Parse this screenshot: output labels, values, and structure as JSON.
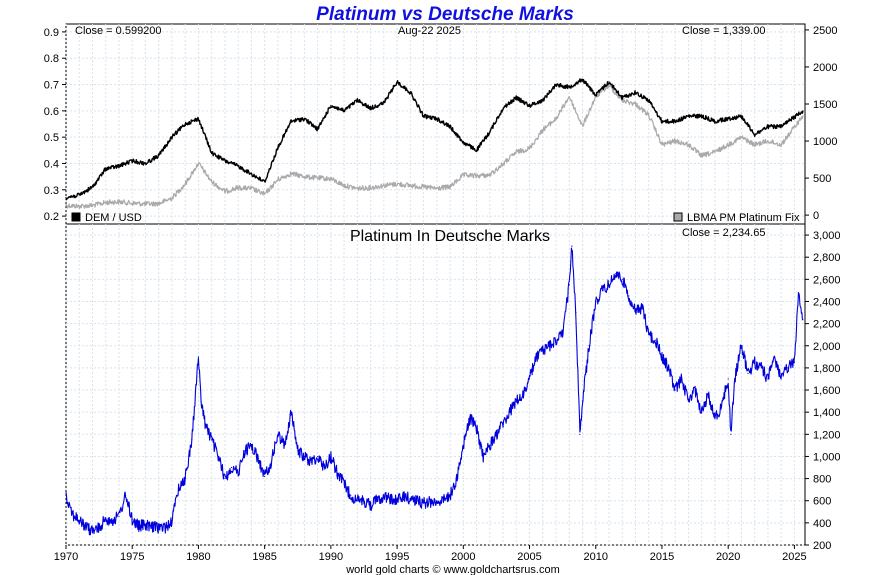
{
  "title": "Platinum vs Deutsche Marks",
  "footer": "world gold charts © www.goldchartsrus.com",
  "chart_data": [
    {
      "type": "line",
      "date_label": "Aug-22  2025",
      "left_close": "Close = 0.599200",
      "right_close": "Close = 1,339.00",
      "left_axis": {
        "ylim": [
          0.17,
          0.93
        ],
        "ticks": [
          "0.2",
          "0.3",
          "0.4",
          "0.5",
          "0.6",
          "0.7",
          "0.8",
          "0.9"
        ],
        "tick_values": [
          0.2,
          0.3,
          0.4,
          0.5,
          0.6,
          0.7,
          0.8,
          0.9
        ]
      },
      "right_axis": {
        "ylim": [
          -120,
          2580
        ],
        "ticks": [
          "0",
          "500",
          "1000",
          "1500",
          "2000",
          "2500"
        ],
        "tick_values": [
          0,
          500,
          1000,
          1500,
          2000,
          2500
        ]
      },
      "x": [
        1970,
        1971,
        1972,
        1973,
        1974,
        1975,
        1976,
        1977,
        1978,
        1979,
        1980,
        1981,
        1982,
        1983,
        1984,
        1985,
        1986,
        1987,
        1988,
        1989,
        1990,
        1991,
        1992,
        1993,
        1994,
        1995,
        1996,
        1997,
        1998,
        1999,
        2000,
        2001,
        2002,
        2003,
        2004,
        2005,
        2006,
        2007,
        2008,
        2009,
        2010,
        2011,
        2012,
        2013,
        2014,
        2015,
        2016,
        2017,
        2018,
        2019,
        2020,
        2021,
        2022,
        2023,
        2024,
        2025.64
      ],
      "series": [
        {
          "name": "DEM / USD",
          "color": "#000000",
          "axis": "left",
          "values": [
            0.27,
            0.28,
            0.31,
            0.38,
            0.39,
            0.41,
            0.4,
            0.43,
            0.5,
            0.55,
            0.57,
            0.44,
            0.41,
            0.39,
            0.36,
            0.33,
            0.46,
            0.56,
            0.57,
            0.53,
            0.62,
            0.6,
            0.64,
            0.61,
            0.63,
            0.71,
            0.67,
            0.58,
            0.57,
            0.54,
            0.48,
            0.45,
            0.52,
            0.61,
            0.65,
            0.62,
            0.64,
            0.7,
            0.69,
            0.72,
            0.66,
            0.71,
            0.65,
            0.67,
            0.64,
            0.56,
            0.56,
            0.58,
            0.58,
            0.56,
            0.57,
            0.58,
            0.51,
            0.54,
            0.54,
            0.6
          ]
        },
        {
          "name": "LBMA PM Platinum Fix",
          "color": "#aaaaaa",
          "axis": "right",
          "values": [
            130,
            120,
            130,
            170,
            180,
            160,
            150,
            155,
            230,
            420,
            700,
            450,
            320,
            370,
            360,
            280,
            480,
            560,
            520,
            500,
            490,
            400,
            360,
            370,
            400,
            420,
            400,
            380,
            360,
            380,
            540,
            530,
            540,
            690,
            850,
            900,
            1150,
            1300,
            1600,
            1200,
            1600,
            1750,
            1550,
            1500,
            1350,
            950,
            1000,
            950,
            800,
            850,
            950,
            1050,
            950,
            1000,
            950,
            1339
          ]
        }
      ],
      "legend": [
        {
          "label": "DEM / USD",
          "swatch": "#000000",
          "placement": "bottom-left"
        },
        {
          "label": "LBMA PM Platinum Fix",
          "swatch": "#aaaaaa",
          "placement": "bottom-right"
        }
      ]
    },
    {
      "type": "line",
      "title": "Platinum In Deutsche Marks",
      "right_close": "Close = 2,234.65",
      "right_axis": {
        "ylim": [
          200,
          3100
        ],
        "ticks": [
          "200",
          "400",
          "600",
          "800",
          "1,000",
          "1,200",
          "1,400",
          "1,600",
          "1,800",
          "2,000",
          "2,200",
          "2,400",
          "2,600",
          "2,800",
          "3,000"
        ],
        "tick_values": [
          200,
          400,
          600,
          800,
          1000,
          1200,
          1400,
          1600,
          1800,
          2000,
          2200,
          2400,
          2600,
          2800,
          3000
        ]
      },
      "x_axis": {
        "xlim": [
          1970,
          2025.8
        ],
        "ticks": [
          "1970",
          "1975",
          "1980",
          "1985",
          "1990",
          "1995",
          "2000",
          "2005",
          "2010",
          "2015",
          "2020",
          "2025"
        ],
        "tick_values": [
          1970,
          1975,
          1980,
          1985,
          1990,
          1995,
          2000,
          2005,
          2010,
          2015,
          2020,
          2025
        ]
      },
      "x": [
        1970,
        1970.5,
        1971,
        1971.5,
        1972,
        1972.5,
        1973,
        1973.5,
        1974,
        1974.5,
        1975,
        1975.5,
        1976,
        1976.5,
        1977,
        1977.5,
        1978,
        1978.5,
        1979,
        1979.5,
        1980,
        1980.2,
        1980.5,
        1981,
        1981.5,
        1982,
        1982.5,
        1983,
        1983.5,
        1984,
        1984.5,
        1985,
        1985.5,
        1986,
        1986.5,
        1987,
        1987.5,
        1988,
        1988.5,
        1989,
        1989.5,
        1990,
        1990.5,
        1991,
        1991.5,
        1992,
        1992.5,
        1993,
        1993.5,
        1994,
        1994.5,
        1995,
        1995.5,
        1996,
        1996.5,
        1997,
        1997.5,
        1998,
        1998.5,
        1999,
        1999.5,
        2000,
        2000.5,
        2001,
        2001.5,
        2002,
        2002.5,
        2003,
        2003.5,
        2004,
        2004.5,
        2005,
        2005.5,
        2006,
        2006.5,
        2007,
        2007.5,
        2008,
        2008.2,
        2008.5,
        2008.8,
        2009,
        2009.5,
        2010,
        2010.5,
        2011,
        2011.5,
        2012,
        2012.5,
        2013,
        2013.5,
        2014,
        2014.5,
        2015,
        2015.5,
        2016,
        2016.5,
        2017,
        2017.5,
        2018,
        2018.5,
        2019,
        2019.5,
        2020,
        2020.2,
        2020.5,
        2021,
        2021.5,
        2022,
        2022.5,
        2023,
        2023.5,
        2024,
        2024.5,
        2025,
        2025.3,
        2025.64
      ],
      "series": [
        {
          "name": "Platinum In Deutsche Marks",
          "color": "#0000dd",
          "values": [
            650,
            480,
            420,
            360,
            330,
            350,
            440,
            420,
            460,
            650,
            430,
            370,
            380,
            360,
            360,
            360,
            420,
            720,
            800,
            1150,
            1900,
            1500,
            1300,
            1150,
            1000,
            800,
            900,
            850,
            1050,
            1100,
            980,
            820,
            950,
            1200,
            1100,
            1400,
            1050,
            1000,
            950,
            1000,
            900,
            1000,
            850,
            750,
            650,
            600,
            600,
            560,
            610,
            640,
            620,
            600,
            640,
            620,
            600,
            580,
            590,
            600,
            600,
            650,
            800,
            1100,
            1350,
            1250,
            1000,
            1100,
            1200,
            1300,
            1400,
            1500,
            1550,
            1700,
            1900,
            1950,
            2000,
            2050,
            2100,
            2550,
            2900,
            2300,
            1200,
            1500,
            2000,
            2400,
            2500,
            2550,
            2650,
            2600,
            2450,
            2300,
            2350,
            2100,
            2050,
            1900,
            1800,
            1600,
            1700,
            1500,
            1600,
            1400,
            1550,
            1350,
            1450,
            1700,
            1200,
            1700,
            2000,
            1750,
            1850,
            1800,
            1700,
            1900,
            1700,
            1800,
            1850,
            2480,
            2235
          ]
        }
      ]
    }
  ]
}
